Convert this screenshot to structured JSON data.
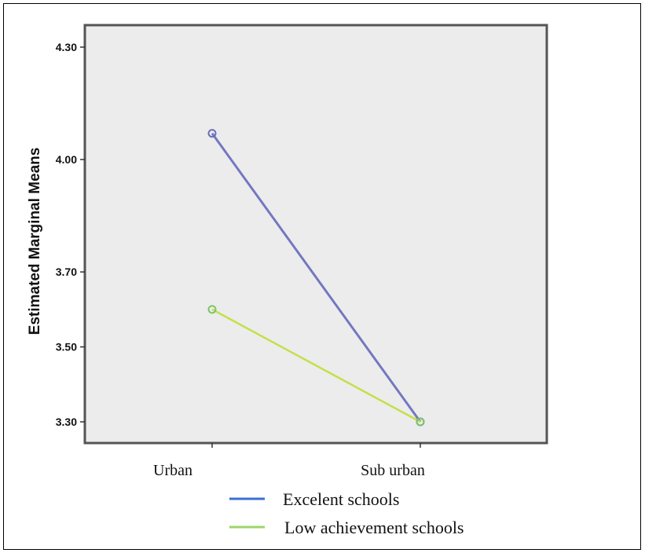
{
  "chart_data": {
    "type": "line",
    "title": "",
    "xlabel": "",
    "ylabel": "Estimated Marginal Means",
    "categories": [
      "Urban",
      "Sub urban"
    ],
    "yticks": [
      3.3,
      3.5,
      3.7,
      4.0,
      4.3
    ],
    "ytick_labels": [
      "3.30",
      "3.50",
      "3.70",
      "4.00",
      "4.30"
    ],
    "ylim": [
      3.24,
      4.36
    ],
    "grid": false,
    "legend_position": "bottom",
    "series": [
      {
        "name": "Excelent schools",
        "values": [
          4.07,
          3.3
        ],
        "color": "#7478c0"
      },
      {
        "name": "Low achievement schools",
        "values": [
          3.6,
          3.3
        ],
        "color": "#c2e04a"
      }
    ],
    "legend_line_colors": [
      "#3a6fd0",
      "#9bd66b"
    ],
    "plot_background": "#ececec"
  }
}
